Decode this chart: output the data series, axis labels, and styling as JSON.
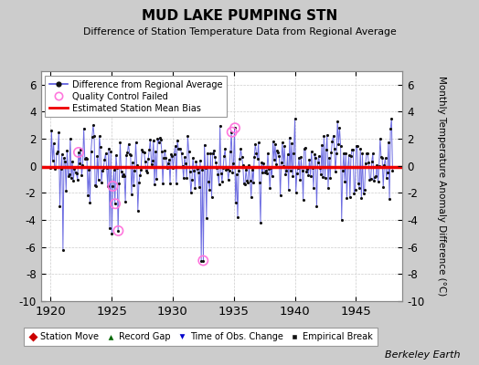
{
  "title": "MUD LAKE PUMPING STN",
  "subtitle": "Difference of Station Temperature Data from Regional Average",
  "ylabel": "Monthly Temperature Anomaly Difference (°C)",
  "xlabel_years": [
    1920,
    1925,
    1930,
    1935,
    1940,
    1945
  ],
  "xlim": [
    1919.2,
    1948.8
  ],
  "ylim": [
    -10,
    7
  ],
  "yticks": [
    -10,
    -8,
    -6,
    -4,
    -2,
    0,
    2,
    4,
    6
  ],
  "bias_value": -0.1,
  "background_color": "#cccccc",
  "plot_bg_color": "#ffffff",
  "line_color": "#5555dd",
  "dot_color": "#111111",
  "bias_color": "#ee0000",
  "qc_color": "#ff77dd",
  "berkeley_earth_text": "Berkeley Earth",
  "seed": 99,
  "n_points": 330,
  "x_start": 1920.0,
  "x_end": 1948.0
}
